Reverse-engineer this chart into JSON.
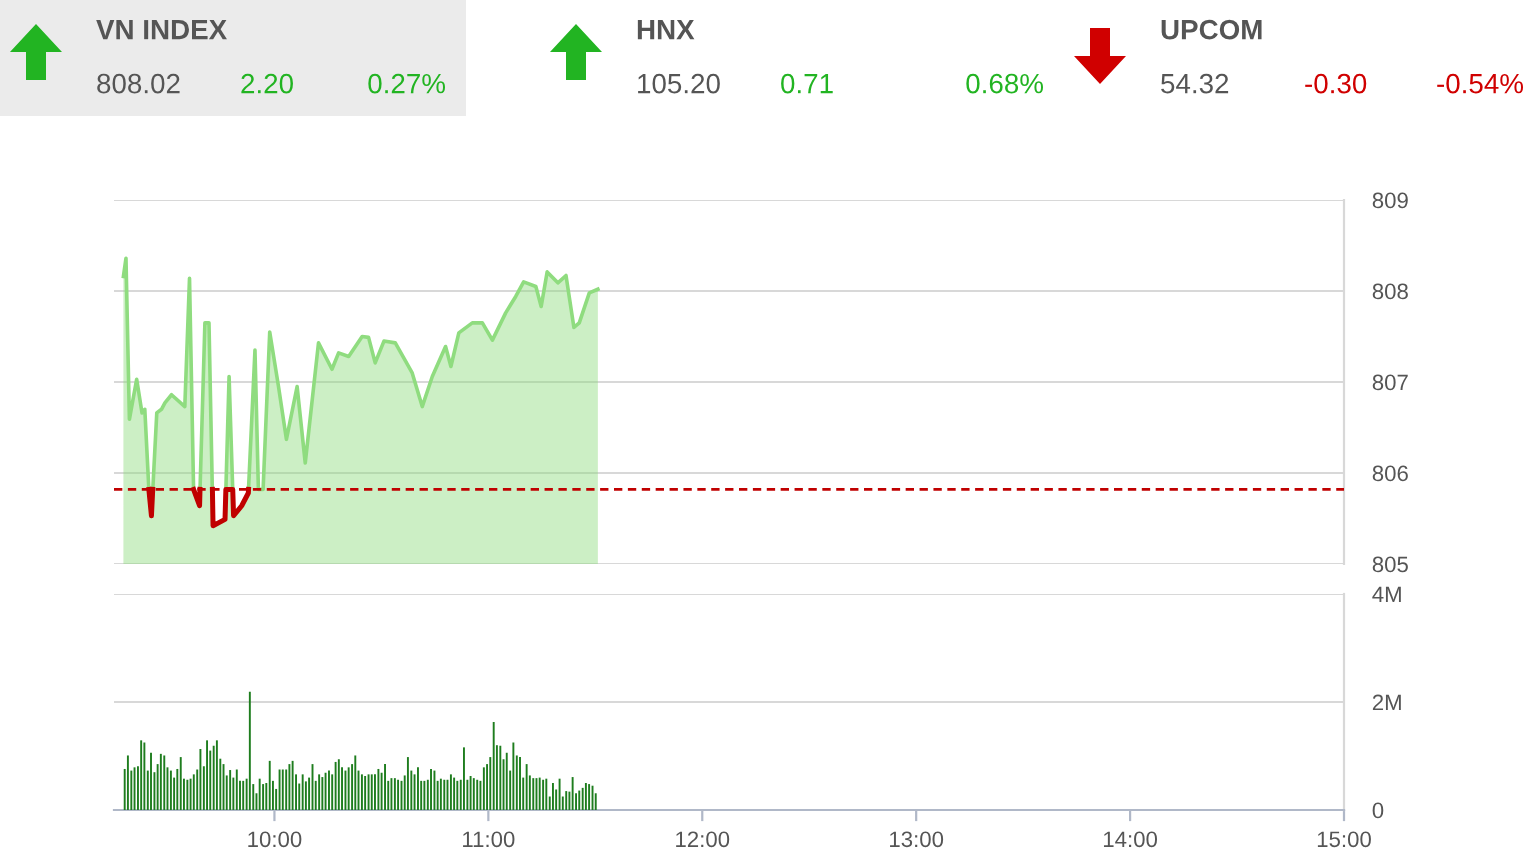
{
  "chart_data": [
    {
      "type": "other",
      "title": "VN INDEX",
      "annotations": [
        "808.02",
        "2.20",
        "0.27%"
      ],
      "color": "#22b422"
    },
    {
      "type": "other",
      "title": "HNX",
      "annotations": [
        "105.20",
        "0.71",
        "0.68%"
      ],
      "color": "#22b422"
    },
    {
      "type": "other",
      "title": "UPCOM",
      "annotations": [
        "54.32",
        "-0.30",
        "-0.54%"
      ],
      "color": "#d00000"
    },
    {
      "type": "area",
      "tick_labels": "y",
      "grid": "y",
      "xlim": [
        9.25,
        15
      ],
      "ylim": [
        805,
        809
      ],
      "yticks": [
        805,
        806,
        807,
        808,
        809
      ],
      "ref_lines": [
        {
          "axis": "y",
          "value": 805.82,
          "color": "#c00000",
          "line_style": "dashed"
        }
      ],
      "series": [
        {
          "color": "#8fdc7f",
          "x": [
            9.294,
            9.306,
            9.322,
            9.356,
            9.381,
            9.394,
            9.413,
            9.425,
            9.45,
            9.472,
            9.488,
            9.519,
            9.581,
            9.603,
            9.622,
            9.65,
            9.675,
            9.694,
            9.713,
            9.769,
            9.788,
            9.809,
            9.847,
            9.878,
            9.909,
            9.925,
            9.947,
            9.978,
            10.019,
            10.056,
            10.106,
            10.144,
            10.206,
            10.269,
            10.3,
            10.347,
            10.41,
            10.44,
            10.471,
            10.512,
            10.565,
            10.644,
            10.691,
            10.738,
            10.8,
            10.825,
            10.862,
            10.925,
            10.972,
            11.019,
            11.081,
            11.128,
            11.165,
            11.222,
            11.247,
            11.275,
            11.325,
            11.363,
            11.4,
            11.425,
            11.472,
            11.512
          ],
          "values": [
            808.16,
            808.36,
            806.59,
            807.03,
            806.66,
            806.7,
            805.82,
            805.53,
            806.66,
            806.7,
            806.77,
            806.86,
            806.73,
            808.14,
            805.82,
            805.64,
            807.65,
            807.65,
            805.42,
            805.49,
            807.06,
            805.53,
            805.64,
            805.78,
            807.35,
            805.82,
            805.82,
            807.55,
            806.95,
            806.37,
            806.95,
            806.11,
            807.43,
            807.14,
            807.32,
            807.28,
            807.5,
            807.49,
            807.21,
            807.45,
            807.43,
            807.1,
            806.73,
            807.06,
            807.39,
            807.17,
            807.54,
            807.65,
            807.65,
            807.46,
            807.76,
            807.94,
            808.1,
            808.05,
            807.83,
            808.21,
            808.09,
            808.17,
            807.6,
            807.65,
            807.98,
            808.02
          ]
        },
        {
          "type": "line",
          "color": "#c00000",
          "x": [
            9.413,
            9.425,
            9.431,
            9.44,
            9.622,
            9.65,
            9.652,
            9.66,
            9.71,
            9.713,
            9.769,
            9.773,
            9.805,
            9.809,
            9.847,
            9.878,
            9.879
          ],
          "values": [
            805.82,
            805.53,
            805.82,
            null,
            805.82,
            805.64,
            805.82,
            null,
            805.82,
            805.42,
            805.49,
            805.82,
            805.82,
            805.53,
            805.64,
            805.78,
            805.82
          ]
        }
      ]
    },
    {
      "type": "bar",
      "grid": "y",
      "xlim": [
        9.25,
        15
      ],
      "ylim": [
        0,
        4
      ],
      "xticks": [
        {
          "value": 10,
          "label": "10:00"
        },
        {
          "value": 11,
          "label": "11:00"
        },
        {
          "value": 12,
          "label": "12:00"
        },
        {
          "value": 13,
          "label": "13:00"
        },
        {
          "value": 14,
          "label": "14:00"
        },
        {
          "value": 15,
          "label": "15:00"
        }
      ],
      "yticks": [
        0,
        {
          "value": 2,
          "label": "2M"
        },
        {
          "value": 4,
          "label": "4M"
        }
      ],
      "series": [
        {
          "color": "#1e7d1e",
          "x": [
            9.3,
            9.315,
            9.331,
            9.346,
            9.362,
            9.377,
            9.392,
            9.408,
            9.423,
            9.439,
            9.454,
            9.469,
            9.485,
            9.5,
            9.516,
            9.531,
            9.546,
            9.562,
            9.577,
            9.593,
            9.608,
            9.623,
            9.639,
            9.654,
            9.67,
            9.685,
            9.7,
            9.716,
            9.731,
            9.747,
            9.762,
            9.777,
            9.793,
            9.808,
            9.824,
            9.839,
            9.854,
            9.87,
            9.885,
            9.901,
            9.916,
            9.931,
            9.947,
            9.962,
            9.978,
            9.993,
            10.008,
            10.024,
            10.039,
            10.055,
            10.07,
            10.085,
            10.101,
            10.116,
            10.132,
            10.147,
            10.162,
            10.178,
            10.193,
            10.209,
            10.224,
            10.239,
            10.255,
            10.27,
            10.286,
            10.301,
            10.316,
            10.332,
            10.347,
            10.363,
            10.378,
            10.393,
            10.409,
            10.424,
            10.44,
            10.455,
            10.47,
            10.486,
            10.501,
            10.517,
            10.532,
            10.547,
            10.563,
            10.578,
            10.594,
            10.609,
            10.624,
            10.64,
            10.655,
            10.671,
            10.686,
            10.701,
            10.717,
            10.732,
            10.748,
            10.763,
            10.778,
            10.794,
            10.809,
            10.825,
            10.84,
            10.855,
            10.871,
            10.886,
            10.902,
            10.917,
            10.932,
            10.948,
            10.963,
            10.979,
            10.994,
            11.009,
            11.025,
            11.04,
            11.056,
            11.071,
            11.086,
            11.102,
            11.117,
            11.133,
            11.148,
            11.163,
            11.179,
            11.194,
            11.21,
            11.225,
            11.24,
            11.256,
            11.271,
            11.287,
            11.302,
            11.317,
            11.333,
            11.348,
            11.364,
            11.379,
            11.394,
            11.41,
            11.425,
            11.441,
            11.456,
            11.471,
            11.487,
            11.502
          ],
          "values": [
            0.76,
            1.01,
            0.73,
            0.79,
            0.81,
            1.29,
            1.25,
            0.73,
            1.06,
            0.7,
            0.85,
            1.04,
            1.01,
            0.79,
            0.73,
            0.6,
            0.76,
            0.98,
            0.58,
            0.56,
            0.58,
            0.66,
            0.75,
            1.13,
            0.81,
            1.29,
            1.1,
            1.19,
            1.29,
            0.95,
            0.85,
            0.64,
            0.74,
            0.6,
            0.75,
            0.54,
            0.54,
            0.58,
            2.19,
            0.48,
            0.31,
            0.58,
            0.48,
            0.5,
            0.91,
            0.54,
            0.39,
            0.75,
            0.75,
            0.75,
            0.85,
            0.91,
            0.66,
            0.49,
            0.66,
            0.53,
            0.6,
            0.85,
            0.54,
            0.66,
            0.61,
            0.69,
            0.73,
            0.66,
            0.89,
            0.94,
            0.79,
            0.73,
            0.79,
            0.85,
            1.01,
            0.73,
            0.66,
            0.63,
            0.66,
            0.66,
            0.66,
            0.76,
            0.69,
            0.85,
            0.54,
            0.59,
            0.59,
            0.56,
            0.54,
            0.64,
            0.98,
            0.73,
            0.66,
            0.79,
            0.54,
            0.54,
            0.56,
            0.76,
            0.73,
            0.54,
            0.58,
            0.56,
            0.56,
            0.66,
            0.6,
            0.54,
            0.56,
            1.16,
            0.56,
            0.63,
            0.59,
            0.56,
            0.54,
            0.79,
            0.85,
            0.98,
            1.63,
            1.2,
            1.19,
            0.94,
            1.06,
            0.73,
            1.25,
            1.01,
            0.98,
            0.6,
            0.85,
            0.64,
            0.59,
            0.59,
            0.6,
            0.56,
            0.58,
            0.25,
            0.5,
            0.38,
            0.58,
            0.25,
            0.35,
            0.34,
            0.61,
            0.31,
            0.36,
            0.41,
            0.5,
            0.48,
            0.45,
            0.31
          ]
        }
      ]
    }
  ]
}
